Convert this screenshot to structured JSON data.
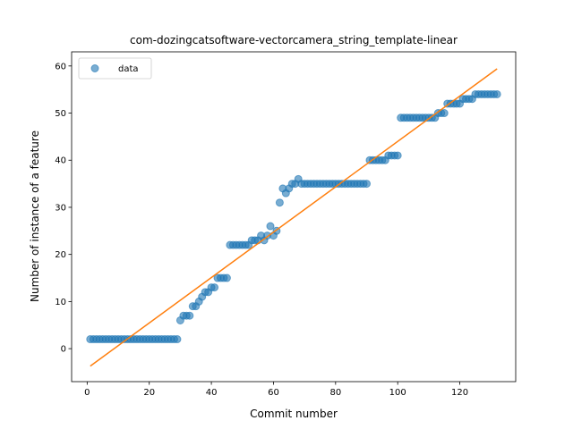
{
  "chart_data": {
    "type": "scatter",
    "title": "com-dozingcatsoftware-vectorcamera_string_template-linear",
    "xlabel": "Commit number",
    "ylabel": "Number of instance of a feature",
    "xlim": [
      -5,
      138
    ],
    "ylim": [
      -7,
      63
    ],
    "xticks": [
      0,
      20,
      40,
      60,
      80,
      100,
      120
    ],
    "yticks": [
      0,
      10,
      20,
      30,
      40,
      50,
      60
    ],
    "grid": false,
    "legend": {
      "placement": "top-left",
      "entries": [
        "data"
      ]
    },
    "colors": {
      "data": "#1f77b4",
      "fit": "#ff7f0e"
    },
    "series": [
      {
        "name": "data",
        "kind": "scatter",
        "x": [
          1,
          2,
          3,
          4,
          5,
          6,
          7,
          8,
          9,
          10,
          11,
          12,
          13,
          14,
          15,
          16,
          17,
          18,
          19,
          20,
          21,
          22,
          23,
          24,
          25,
          26,
          27,
          28,
          29,
          30,
          31,
          32,
          33,
          34,
          35,
          36,
          37,
          38,
          39,
          40,
          41,
          42,
          43,
          44,
          45,
          46,
          47,
          48,
          49,
          50,
          51,
          52,
          53,
          54,
          55,
          56,
          57,
          58,
          59,
          60,
          61,
          62,
          63,
          64,
          65,
          66,
          67,
          68,
          69,
          70,
          71,
          72,
          73,
          74,
          75,
          76,
          77,
          78,
          79,
          80,
          81,
          82,
          83,
          84,
          85,
          86,
          87,
          88,
          89,
          90,
          91,
          92,
          93,
          94,
          95,
          96,
          97,
          98,
          99,
          100,
          101,
          102,
          103,
          104,
          105,
          106,
          107,
          108,
          109,
          110,
          111,
          112,
          113,
          114,
          115,
          116,
          117,
          118,
          119,
          120,
          121,
          122,
          123,
          124,
          125,
          126,
          127,
          128,
          129,
          130,
          131,
          132
        ],
        "y": [
          2,
          2,
          2,
          2,
          2,
          2,
          2,
          2,
          2,
          2,
          2,
          2,
          2,
          2,
          2,
          2,
          2,
          2,
          2,
          2,
          2,
          2,
          2,
          2,
          2,
          2,
          2,
          2,
          2,
          6,
          7,
          7,
          7,
          9,
          9,
          10,
          11,
          12,
          12,
          13,
          13,
          15,
          15,
          15,
          15,
          22,
          22,
          22,
          22,
          22,
          22,
          22,
          23,
          23,
          23,
          24,
          23,
          24,
          26,
          24,
          25,
          31,
          34,
          33,
          34,
          35,
          35,
          36,
          35,
          35,
          35,
          35,
          35,
          35,
          35,
          35,
          35,
          35,
          35,
          35,
          35,
          35,
          35,
          35,
          35,
          35,
          35,
          35,
          35,
          35,
          40,
          40,
          40,
          40,
          40,
          40,
          41,
          41,
          41,
          41,
          49,
          49,
          49,
          49,
          49,
          49,
          49,
          49,
          49,
          49,
          49,
          49,
          50,
          50,
          50,
          52,
          52,
          52,
          52,
          52,
          53,
          53,
          53,
          53,
          54,
          54,
          54,
          54,
          54,
          54,
          54,
          54
        ]
      },
      {
        "name": "",
        "kind": "line",
        "x": [
          1,
          132
        ],
        "y": [
          -3.7,
          59.4
        ]
      }
    ]
  }
}
